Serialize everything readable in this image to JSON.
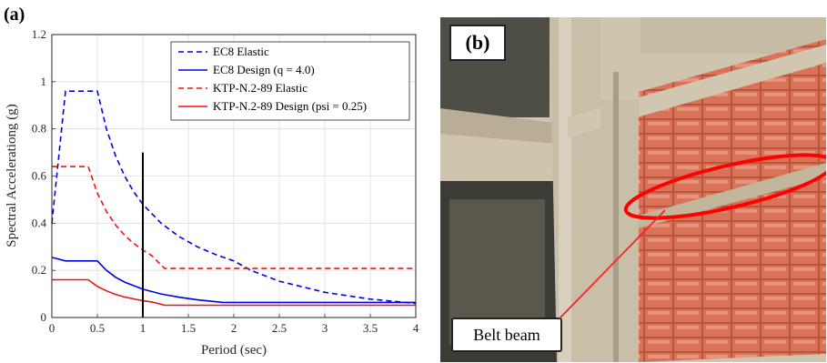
{
  "panel_a": {
    "tag": "(a)"
  },
  "panel_b": {
    "tag": "(b)",
    "callout_label": "Belt beam"
  },
  "colors": {
    "blue": "#0000e6",
    "red": "#ee1111",
    "marker": "#000000",
    "highlight": "#ff0000"
  },
  "chart_data": {
    "type": "line",
    "xlabel": "Period (sec)",
    "ylabel": "Spectral Accelerationg (g)",
    "xlim": [
      0,
      4
    ],
    "ylim": [
      0,
      1.2
    ],
    "xticks": [
      "0",
      "0.5",
      "1",
      "1.5",
      "2",
      "2.5",
      "3",
      "3.5",
      "4"
    ],
    "yticks": [
      "0",
      "0.2",
      "0.4",
      "0.6",
      "0.8",
      "1",
      "1.2"
    ],
    "grid": true,
    "legend_position": "top-right",
    "vertical_marker": {
      "x": 1.0,
      "y": 0.7
    },
    "series": [
      {
        "name": "EC8 Elastic",
        "color": "blue",
        "style": "dashed",
        "x": [
          0,
          0.15,
          0.5,
          0.6,
          0.7,
          0.8,
          0.9,
          1.0,
          1.2,
          1.4,
          1.6,
          1.8,
          2.0,
          2.2,
          2.5,
          3.0,
          3.5,
          4.0
        ],
        "y": [
          0.4,
          0.96,
          0.96,
          0.8,
          0.686,
          0.6,
          0.533,
          0.48,
          0.4,
          0.343,
          0.3,
          0.267,
          0.24,
          0.198,
          0.154,
          0.107,
          0.078,
          0.06
        ]
      },
      {
        "name": "EC8 Design (q = 4.0)",
        "color": "blue",
        "style": "solid",
        "x": [
          0,
          0.15,
          0.5,
          0.6,
          0.7,
          0.8,
          1.0,
          1.2,
          1.4,
          1.6,
          1.88,
          2.0,
          2.5,
          3.0,
          3.5,
          4.0
        ],
        "y": [
          0.255,
          0.24,
          0.24,
          0.2,
          0.171,
          0.15,
          0.12,
          0.1,
          0.086,
          0.075,
          0.064,
          0.064,
          0.064,
          0.064,
          0.064,
          0.064
        ]
      },
      {
        "name": "KTP-N.2-89 Elastic",
        "color": "red",
        "style": "dashed",
        "x": [
          0,
          0.05,
          0.4,
          0.5,
          0.6,
          0.7,
          0.8,
          0.9,
          1.0,
          1.1,
          1.24,
          1.5,
          2.0,
          2.5,
          3.0,
          3.5,
          4.0
        ],
        "y": [
          0.64,
          0.64,
          0.64,
          0.528,
          0.45,
          0.393,
          0.349,
          0.314,
          0.286,
          0.262,
          0.208,
          0.208,
          0.208,
          0.208,
          0.208,
          0.208,
          0.208
        ]
      },
      {
        "name": "KTP-N.2-89 Design (psi = 0.25)",
        "color": "red",
        "style": "solid",
        "x": [
          0,
          0.05,
          0.4,
          0.5,
          0.6,
          0.7,
          0.8,
          0.9,
          1.0,
          1.1,
          1.24,
          1.5,
          2.0,
          2.5,
          3.0,
          3.5,
          4.0
        ],
        "y": [
          0.16,
          0.16,
          0.16,
          0.132,
          0.113,
          0.098,
          0.087,
          0.079,
          0.071,
          0.066,
          0.052,
          0.052,
          0.052,
          0.052,
          0.052,
          0.052,
          0.052
        ]
      }
    ]
  }
}
